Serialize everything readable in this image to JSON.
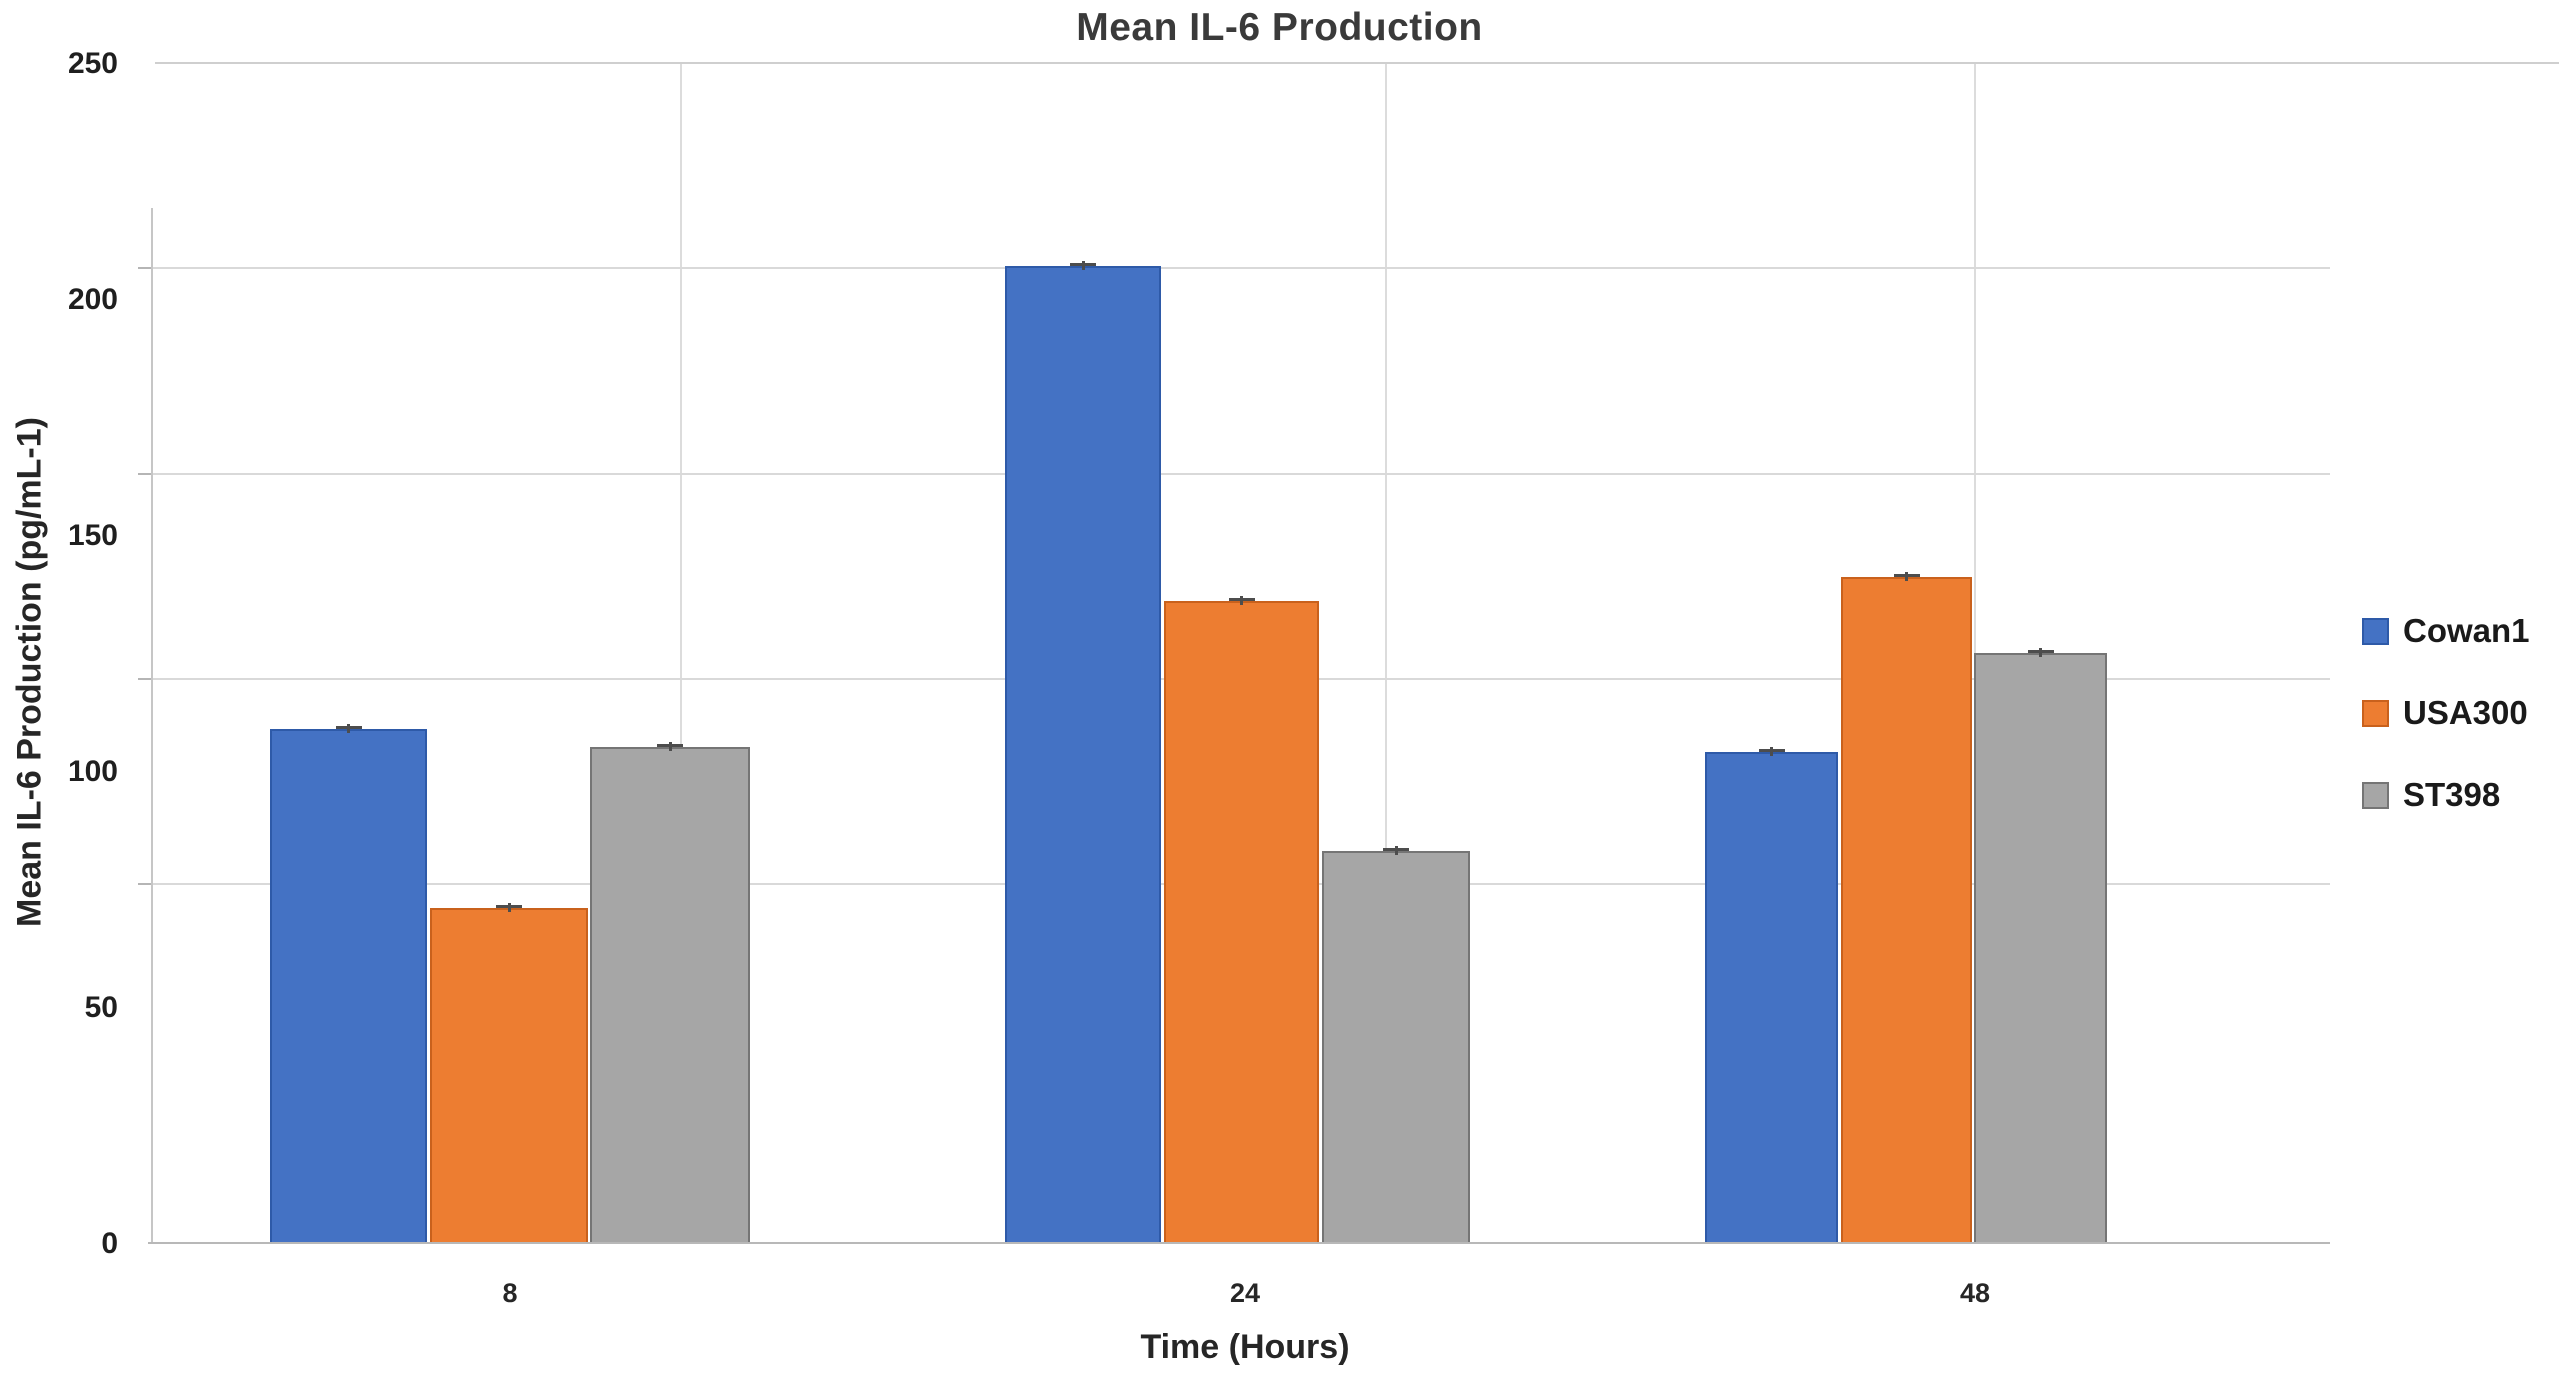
{
  "title": "Mean IL-6 Production",
  "chart_data": {
    "type": "bar",
    "title": "Mean IL-6 Production",
    "xlabel": "Time (Hours)",
    "ylabel": "Mean IL-6 Production (pg/mL-1)",
    "categories": [
      "8",
      "24",
      "48"
    ],
    "series": [
      {
        "name": "Cowan1",
        "color": "#4472C4",
        "border_color": "#2E5AA8",
        "values": [
          109,
          207,
          104
        ]
      },
      {
        "name": "USA300",
        "color": "#ED7D31",
        "border_color": "#C9611C",
        "values": [
          71,
          136,
          141
        ]
      },
      {
        "name": "ST398",
        "color": "#A6A6A6",
        "border_color": "#757575",
        "values": [
          105,
          83,
          125
        ]
      }
    ],
    "ylim": [
      0,
      250
    ],
    "yticks": [
      0,
      50,
      100,
      150,
      200,
      250
    ],
    "grid": true,
    "error_bars": true,
    "legend_position": "right"
  },
  "colors": {
    "gridline": "#D9D9D9",
    "axis": "#C6C6C6",
    "text": "#262626",
    "error_bar": "#4D4D4D",
    "background": "#FFFFFF"
  }
}
